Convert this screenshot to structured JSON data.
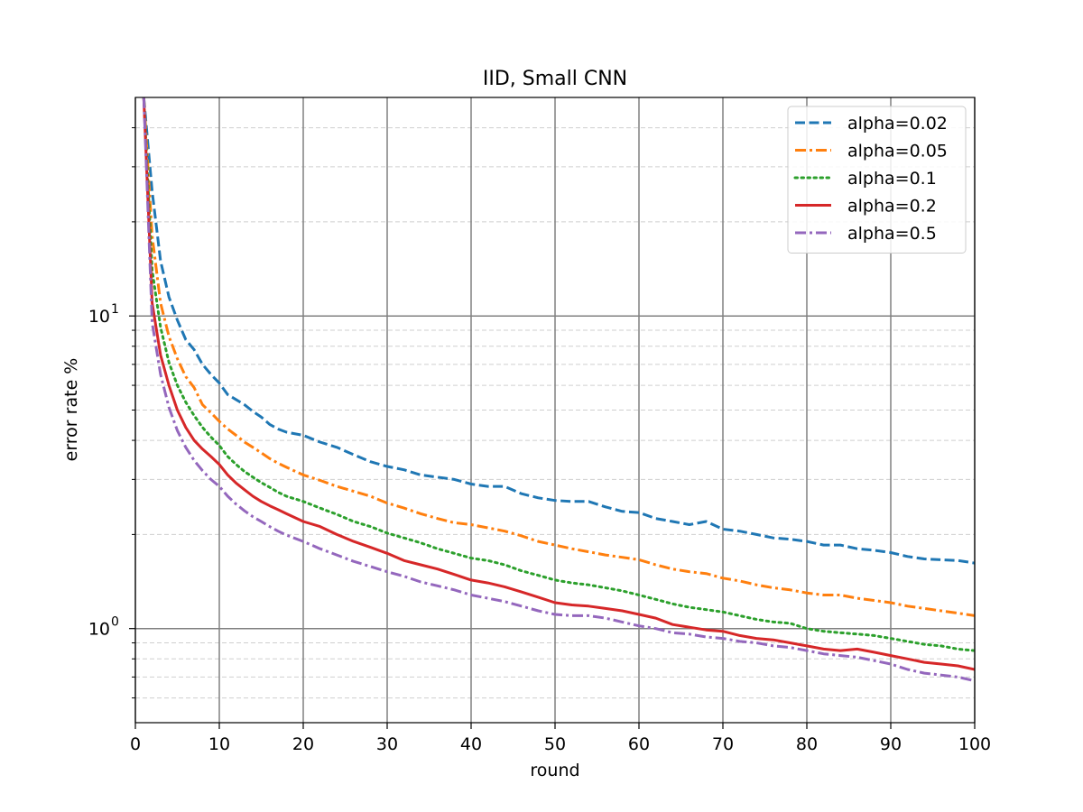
{
  "chart_data": {
    "type": "line",
    "title": "IID, Small CNN",
    "xlabel": "round",
    "ylabel": "error rate %",
    "xlim": [
      0,
      100
    ],
    "ylim": [
      0.5,
      50
    ],
    "y_scale": "log",
    "x_ticks": [
      "0",
      "10",
      "20",
      "30",
      "40",
      "50",
      "60",
      "70",
      "80",
      "90",
      "100"
    ],
    "y_major_ticks": [
      {
        "value": 1,
        "base": "10",
        "exp": "0"
      },
      {
        "value": 10,
        "base": "10",
        "exp": "1"
      }
    ],
    "grid": {
      "major": "solid",
      "minor_y": "dashed"
    },
    "legend_position": "top-right",
    "series": [
      {
        "name": "alpha=0.02",
        "color": "#1f77b4",
        "dash": "dashed",
        "points": [
          [
            1,
            50
          ],
          [
            2,
            25
          ],
          [
            3,
            15
          ],
          [
            4,
            11.5
          ],
          [
            5,
            9.7
          ],
          [
            6,
            8.4
          ],
          [
            7,
            7.8
          ],
          [
            8,
            7.0
          ],
          [
            9,
            6.5
          ],
          [
            10,
            6.1
          ],
          [
            11,
            5.6
          ],
          [
            12,
            5.4
          ],
          [
            13,
            5.2
          ],
          [
            14,
            4.95
          ],
          [
            15,
            4.75
          ],
          [
            16,
            4.5
          ],
          [
            17,
            4.35
          ],
          [
            18,
            4.25
          ],
          [
            20,
            4.15
          ],
          [
            22,
            3.95
          ],
          [
            24,
            3.8
          ],
          [
            26,
            3.6
          ],
          [
            28,
            3.42
          ],
          [
            30,
            3.3
          ],
          [
            32,
            3.22
          ],
          [
            34,
            3.1
          ],
          [
            36,
            3.05
          ],
          [
            38,
            3.0
          ],
          [
            40,
            2.9
          ],
          [
            42,
            2.85
          ],
          [
            44,
            2.85
          ],
          [
            46,
            2.7
          ],
          [
            48,
            2.62
          ],
          [
            50,
            2.57
          ],
          [
            52,
            2.55
          ],
          [
            54,
            2.55
          ],
          [
            56,
            2.45
          ],
          [
            58,
            2.37
          ],
          [
            60,
            2.35
          ],
          [
            62,
            2.25
          ],
          [
            64,
            2.2
          ],
          [
            66,
            2.15
          ],
          [
            68,
            2.2
          ],
          [
            70,
            2.08
          ],
          [
            72,
            2.05
          ],
          [
            74,
            2.0
          ],
          [
            76,
            1.95
          ],
          [
            78,
            1.93
          ],
          [
            80,
            1.9
          ],
          [
            82,
            1.85
          ],
          [
            84,
            1.85
          ],
          [
            86,
            1.8
          ],
          [
            88,
            1.78
          ],
          [
            90,
            1.75
          ],
          [
            92,
            1.7
          ],
          [
            94,
            1.67
          ],
          [
            96,
            1.66
          ],
          [
            98,
            1.65
          ],
          [
            100,
            1.62
          ]
        ]
      },
      {
        "name": "alpha=0.05",
        "color": "#ff7f0e",
        "dash": "dashdot",
        "points": [
          [
            1,
            50
          ],
          [
            2,
            18
          ],
          [
            3,
            11
          ],
          [
            4,
            8.6
          ],
          [
            5,
            7.3
          ],
          [
            6,
            6.4
          ],
          [
            7,
            5.9
          ],
          [
            8,
            5.2
          ],
          [
            9,
            4.9
          ],
          [
            10,
            4.6
          ],
          [
            11,
            4.35
          ],
          [
            12,
            4.15
          ],
          [
            13,
            3.95
          ],
          [
            14,
            3.8
          ],
          [
            15,
            3.65
          ],
          [
            16,
            3.5
          ],
          [
            17,
            3.38
          ],
          [
            18,
            3.28
          ],
          [
            20,
            3.1
          ],
          [
            22,
            2.98
          ],
          [
            24,
            2.85
          ],
          [
            26,
            2.75
          ],
          [
            28,
            2.65
          ],
          [
            30,
            2.52
          ],
          [
            32,
            2.43
          ],
          [
            34,
            2.33
          ],
          [
            36,
            2.25
          ],
          [
            38,
            2.18
          ],
          [
            40,
            2.15
          ],
          [
            42,
            2.1
          ],
          [
            44,
            2.05
          ],
          [
            46,
            1.98
          ],
          [
            48,
            1.9
          ],
          [
            50,
            1.85
          ],
          [
            52,
            1.8
          ],
          [
            54,
            1.76
          ],
          [
            56,
            1.72
          ],
          [
            58,
            1.69
          ],
          [
            60,
            1.66
          ],
          [
            62,
            1.6
          ],
          [
            64,
            1.55
          ],
          [
            66,
            1.52
          ],
          [
            68,
            1.5
          ],
          [
            70,
            1.45
          ],
          [
            72,
            1.42
          ],
          [
            74,
            1.38
          ],
          [
            76,
            1.35
          ],
          [
            78,
            1.33
          ],
          [
            80,
            1.3
          ],
          [
            82,
            1.28
          ],
          [
            84,
            1.28
          ],
          [
            86,
            1.25
          ],
          [
            88,
            1.23
          ],
          [
            90,
            1.21
          ],
          [
            92,
            1.18
          ],
          [
            94,
            1.16
          ],
          [
            96,
            1.14
          ],
          [
            98,
            1.12
          ],
          [
            100,
            1.1
          ]
        ]
      },
      {
        "name": "alpha=0.1",
        "color": "#2ca02c",
        "dash": "dotted",
        "points": [
          [
            1,
            50
          ],
          [
            2,
            14
          ],
          [
            3,
            9.2
          ],
          [
            4,
            7.1
          ],
          [
            5,
            6.0
          ],
          [
            6,
            5.3
          ],
          [
            7,
            4.8
          ],
          [
            8,
            4.4
          ],
          [
            9,
            4.1
          ],
          [
            10,
            3.85
          ],
          [
            11,
            3.55
          ],
          [
            12,
            3.35
          ],
          [
            13,
            3.18
          ],
          [
            14,
            3.05
          ],
          [
            15,
            2.93
          ],
          [
            16,
            2.83
          ],
          [
            17,
            2.73
          ],
          [
            18,
            2.65
          ],
          [
            20,
            2.55
          ],
          [
            22,
            2.43
          ],
          [
            24,
            2.32
          ],
          [
            26,
            2.2
          ],
          [
            28,
            2.12
          ],
          [
            30,
            2.02
          ],
          [
            32,
            1.95
          ],
          [
            34,
            1.88
          ],
          [
            36,
            1.8
          ],
          [
            38,
            1.74
          ],
          [
            40,
            1.68
          ],
          [
            42,
            1.65
          ],
          [
            44,
            1.6
          ],
          [
            46,
            1.53
          ],
          [
            48,
            1.48
          ],
          [
            50,
            1.43
          ],
          [
            52,
            1.4
          ],
          [
            54,
            1.38
          ],
          [
            56,
            1.35
          ],
          [
            58,
            1.32
          ],
          [
            60,
            1.28
          ],
          [
            62,
            1.24
          ],
          [
            64,
            1.2
          ],
          [
            66,
            1.17
          ],
          [
            68,
            1.15
          ],
          [
            70,
            1.13
          ],
          [
            72,
            1.1
          ],
          [
            74,
            1.07
          ],
          [
            76,
            1.05
          ],
          [
            78,
            1.04
          ],
          [
            80,
            1.0
          ],
          [
            82,
            0.98
          ],
          [
            84,
            0.97
          ],
          [
            86,
            0.96
          ],
          [
            88,
            0.95
          ],
          [
            90,
            0.93
          ],
          [
            92,
            0.91
          ],
          [
            94,
            0.89
          ],
          [
            96,
            0.88
          ],
          [
            98,
            0.86
          ],
          [
            100,
            0.85
          ]
        ]
      },
      {
        "name": "alpha=0.2",
        "color": "#d62728",
        "dash": "solid",
        "points": [
          [
            1,
            50
          ],
          [
            2,
            11
          ],
          [
            3,
            7.5
          ],
          [
            4,
            6.0
          ],
          [
            5,
            5.0
          ],
          [
            6,
            4.4
          ],
          [
            7,
            4.0
          ],
          [
            8,
            3.75
          ],
          [
            9,
            3.55
          ],
          [
            10,
            3.35
          ],
          [
            11,
            3.1
          ],
          [
            12,
            2.92
          ],
          [
            13,
            2.78
          ],
          [
            14,
            2.65
          ],
          [
            15,
            2.55
          ],
          [
            16,
            2.47
          ],
          [
            17,
            2.4
          ],
          [
            18,
            2.33
          ],
          [
            20,
            2.2
          ],
          [
            22,
            2.12
          ],
          [
            24,
            2.0
          ],
          [
            26,
            1.9
          ],
          [
            28,
            1.82
          ],
          [
            30,
            1.74
          ],
          [
            32,
            1.65
          ],
          [
            34,
            1.6
          ],
          [
            36,
            1.55
          ],
          [
            38,
            1.49
          ],
          [
            40,
            1.43
          ],
          [
            42,
            1.4
          ],
          [
            44,
            1.36
          ],
          [
            46,
            1.31
          ],
          [
            48,
            1.26
          ],
          [
            50,
            1.21
          ],
          [
            52,
            1.19
          ],
          [
            54,
            1.18
          ],
          [
            56,
            1.16
          ],
          [
            58,
            1.14
          ],
          [
            60,
            1.11
          ],
          [
            62,
            1.08
          ],
          [
            64,
            1.03
          ],
          [
            66,
            1.01
          ],
          [
            68,
            0.99
          ],
          [
            70,
            0.98
          ],
          [
            72,
            0.95
          ],
          [
            74,
            0.93
          ],
          [
            76,
            0.92
          ],
          [
            78,
            0.9
          ],
          [
            80,
            0.88
          ],
          [
            82,
            0.86
          ],
          [
            84,
            0.85
          ],
          [
            86,
            0.86
          ],
          [
            88,
            0.84
          ],
          [
            90,
            0.82
          ],
          [
            92,
            0.8
          ],
          [
            94,
            0.78
          ],
          [
            96,
            0.77
          ],
          [
            98,
            0.76
          ],
          [
            100,
            0.74
          ]
        ]
      },
      {
        "name": "alpha=0.5",
        "color": "#9467bd",
        "dash": "dashdot",
        "points": [
          [
            1,
            50
          ],
          [
            2,
            9.5
          ],
          [
            3,
            6.5
          ],
          [
            4,
            5.1
          ],
          [
            5,
            4.3
          ],
          [
            6,
            3.8
          ],
          [
            7,
            3.45
          ],
          [
            8,
            3.2
          ],
          [
            9,
            3.0
          ],
          [
            10,
            2.85
          ],
          [
            11,
            2.65
          ],
          [
            12,
            2.5
          ],
          [
            13,
            2.38
          ],
          [
            14,
            2.28
          ],
          [
            15,
            2.2
          ],
          [
            16,
            2.12
          ],
          [
            17,
            2.05
          ],
          [
            18,
            1.99
          ],
          [
            20,
            1.9
          ],
          [
            22,
            1.8
          ],
          [
            24,
            1.72
          ],
          [
            26,
            1.64
          ],
          [
            28,
            1.58
          ],
          [
            30,
            1.52
          ],
          [
            32,
            1.47
          ],
          [
            34,
            1.41
          ],
          [
            36,
            1.37
          ],
          [
            38,
            1.33
          ],
          [
            40,
            1.28
          ],
          [
            42,
            1.25
          ],
          [
            44,
            1.22
          ],
          [
            46,
            1.18
          ],
          [
            48,
            1.14
          ],
          [
            50,
            1.11
          ],
          [
            52,
            1.1
          ],
          [
            54,
            1.1
          ],
          [
            56,
            1.08
          ],
          [
            58,
            1.05
          ],
          [
            60,
            1.02
          ],
          [
            62,
            1.0
          ],
          [
            64,
            0.97
          ],
          [
            66,
            0.96
          ],
          [
            68,
            0.94
          ],
          [
            70,
            0.93
          ],
          [
            72,
            0.91
          ],
          [
            74,
            0.9
          ],
          [
            76,
            0.88
          ],
          [
            78,
            0.87
          ],
          [
            80,
            0.85
          ],
          [
            82,
            0.83
          ],
          [
            84,
            0.82
          ],
          [
            86,
            0.81
          ],
          [
            88,
            0.79
          ],
          [
            90,
            0.77
          ],
          [
            92,
            0.74
          ],
          [
            94,
            0.72
          ],
          [
            96,
            0.71
          ],
          [
            98,
            0.7
          ],
          [
            100,
            0.68
          ]
        ]
      }
    ]
  }
}
